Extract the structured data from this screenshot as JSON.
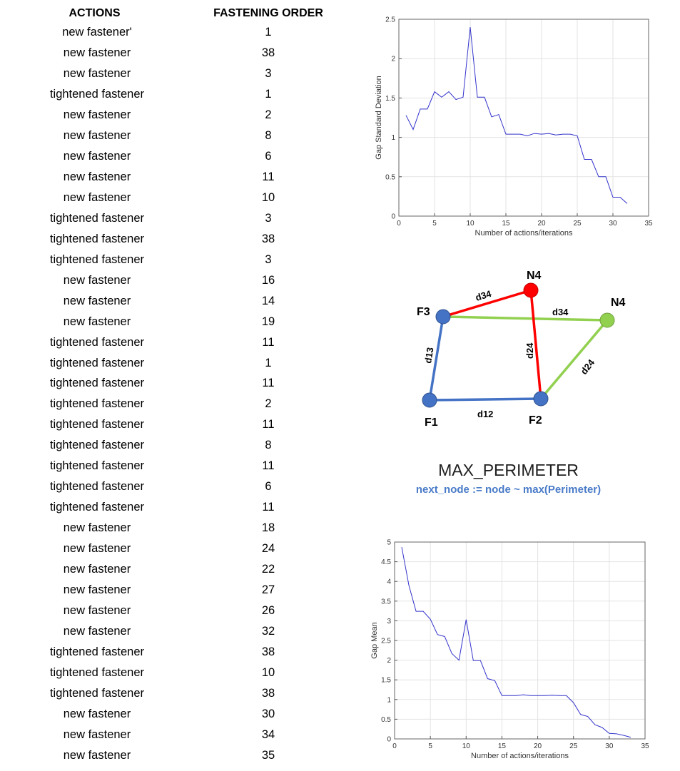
{
  "table": {
    "header_actions": "ACTIONS",
    "header_order": "FASTENING ORDER",
    "rows": [
      {
        "action": "new fastener'",
        "order": "1"
      },
      {
        "action": "new fastener",
        "order": "38"
      },
      {
        "action": "new fastener",
        "order": "3"
      },
      {
        "action": "tightened fastener",
        "order": "1"
      },
      {
        "action": "new fastener",
        "order": "2"
      },
      {
        "action": "new fastener",
        "order": "8"
      },
      {
        "action": "new fastener",
        "order": "6"
      },
      {
        "action": "new fastener",
        "order": "11"
      },
      {
        "action": "new fastener",
        "order": "10"
      },
      {
        "action": "tightened fastener",
        "order": "3"
      },
      {
        "action": "tightened fastener",
        "order": "38"
      },
      {
        "action": "tightened fastener",
        "order": "3"
      },
      {
        "action": "new fastener",
        "order": "16"
      },
      {
        "action": "new fastener",
        "order": "14"
      },
      {
        "action": "new fastener",
        "order": "19"
      },
      {
        "action": "tightened fastener",
        "order": "11"
      },
      {
        "action": "tightened fastener",
        "order": "1"
      },
      {
        "action": "tightened fastener",
        "order": "11"
      },
      {
        "action": "tightened fastener",
        "order": "2"
      },
      {
        "action": "tightened fastener",
        "order": "11"
      },
      {
        "action": "tightened fastener",
        "order": "8"
      },
      {
        "action": "tightened fastener",
        "order": "11"
      },
      {
        "action": "tightened fastener",
        "order": "6"
      },
      {
        "action": "tightened fastener",
        "order": "11"
      },
      {
        "action": "new fastener",
        "order": "18"
      },
      {
        "action": "new fastener",
        "order": "24"
      },
      {
        "action": "new fastener",
        "order": "22"
      },
      {
        "action": "new fastener",
        "order": "27"
      },
      {
        "action": "new fastener",
        "order": "26"
      },
      {
        "action": "new fastener",
        "order": "32"
      },
      {
        "action": "tightened fastener",
        "order": "38"
      },
      {
        "action": "tightened fastener",
        "order": "10"
      },
      {
        "action": "tightened fastener",
        "order": "38"
      },
      {
        "action": "new fastener",
        "order": "30"
      },
      {
        "action": "new fastener",
        "order": "34"
      },
      {
        "action": "new fastener",
        "order": "35"
      }
    ]
  },
  "algorithm": {
    "title": "MAX_PERIMETER",
    "subtitle": "next_node := node ~ max(Perimeter)"
  },
  "diagram": {
    "nodes": {
      "f1": "F1",
      "f2": "F2",
      "f3": "F3",
      "n4_red": "N4",
      "n4_green": "N4"
    },
    "edges": {
      "d12": "d12",
      "d13": "d13",
      "d34_red": "d34",
      "d24_red": "d24",
      "d34_green": "d34",
      "d24_green": "d24"
    },
    "colors": {
      "fastener": "#4472c4",
      "candidate_selected": "#ff0000",
      "candidate_other": "#92d050"
    }
  },
  "chart_data": [
    {
      "type": "line",
      "xlabel": "Number of actions/iterations",
      "ylabel": "Gap Standard Deviation",
      "xlim": [
        0,
        35
      ],
      "ylim": [
        0,
        2.5
      ],
      "xticks": [
        "0",
        "5",
        "10",
        "15",
        "20",
        "25",
        "30",
        "35"
      ],
      "yticks": [
        "0",
        "0.5",
        "1",
        "1.5",
        "2",
        "2.5"
      ],
      "grid": true,
      "color": "#3333cc",
      "x": [
        1,
        2,
        3,
        4,
        5,
        6,
        7,
        8,
        9,
        10,
        11,
        12,
        13,
        14,
        15,
        16,
        17,
        18,
        19,
        20,
        21,
        22,
        23,
        24,
        25,
        26,
        27,
        28,
        29,
        30,
        31,
        32
      ],
      "y": [
        1.28,
        1.1,
        1.36,
        1.36,
        1.58,
        1.51,
        1.58,
        1.48,
        1.51,
        2.4,
        1.51,
        1.51,
        1.26,
        1.29,
        1.04,
        1.04,
        1.04,
        1.02,
        1.05,
        1.04,
        1.05,
        1.03,
        1.04,
        1.04,
        1.02,
        0.72,
        0.72,
        0.5,
        0.5,
        0.24,
        0.24,
        0.16
      ]
    },
    {
      "type": "line",
      "xlabel": "Number of actions/iterations",
      "ylabel": "Gap Mean",
      "xlim": [
        0,
        35
      ],
      "ylim": [
        0,
        5
      ],
      "xticks": [
        "0",
        "5",
        "10",
        "15",
        "20",
        "25",
        "30",
        "35"
      ],
      "yticks": [
        "0",
        "0.5",
        "1",
        "1.5",
        "2",
        "2.5",
        "3",
        "3.5",
        "4",
        "4.5",
        "5"
      ],
      "grid": true,
      "color": "#3333cc",
      "x": [
        1,
        2,
        3,
        4,
        5,
        6,
        7,
        8,
        9,
        10,
        11,
        12,
        13,
        14,
        15,
        16,
        17,
        18,
        19,
        20,
        21,
        22,
        23,
        24,
        25,
        26,
        27,
        28,
        29,
        30,
        31,
        32,
        33
      ],
      "y": [
        4.87,
        3.9,
        3.24,
        3.24,
        3.04,
        2.65,
        2.6,
        2.17,
        2.0,
        3.03,
        1.99,
        1.99,
        1.53,
        1.48,
        1.1,
        1.1,
        1.1,
        1.12,
        1.1,
        1.1,
        1.1,
        1.11,
        1.1,
        1.1,
        0.92,
        0.62,
        0.57,
        0.36,
        0.29,
        0.14,
        0.13,
        0.09,
        0.04
      ]
    }
  ]
}
